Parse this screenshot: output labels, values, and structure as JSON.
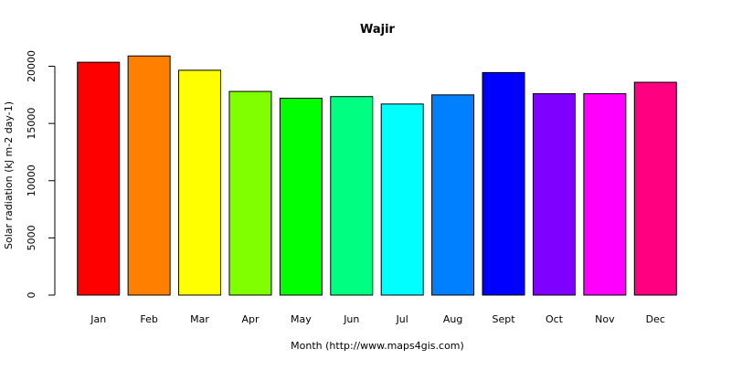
{
  "chart_data": {
    "type": "bar",
    "title": "Wajir",
    "xlabel": "Month (http://www.maps4gis.com)",
    "ylabel": "Solar radiation (kJ m-2 day-1)",
    "categories": [
      "Jan",
      "Feb",
      "Mar",
      "Apr",
      "May",
      "Jun",
      "Jul",
      "Aug",
      "Sept",
      "Oct",
      "Nov",
      "Dec"
    ],
    "values": [
      20350,
      20900,
      19650,
      17800,
      17200,
      17350,
      16700,
      17500,
      19450,
      17600,
      17600,
      18600
    ],
    "colors": [
      "#ff0000",
      "#ff8000",
      "#ffff00",
      "#80ff00",
      "#00ff00",
      "#00ff80",
      "#00ffff",
      "#0080ff",
      "#0000ff",
      "#8000ff",
      "#ff00ff",
      "#ff0080"
    ],
    "yticks": [
      0,
      5000,
      10000,
      15000,
      20000
    ],
    "ylim": [
      0,
      21000
    ],
    "grid": false,
    "legend": "none"
  }
}
